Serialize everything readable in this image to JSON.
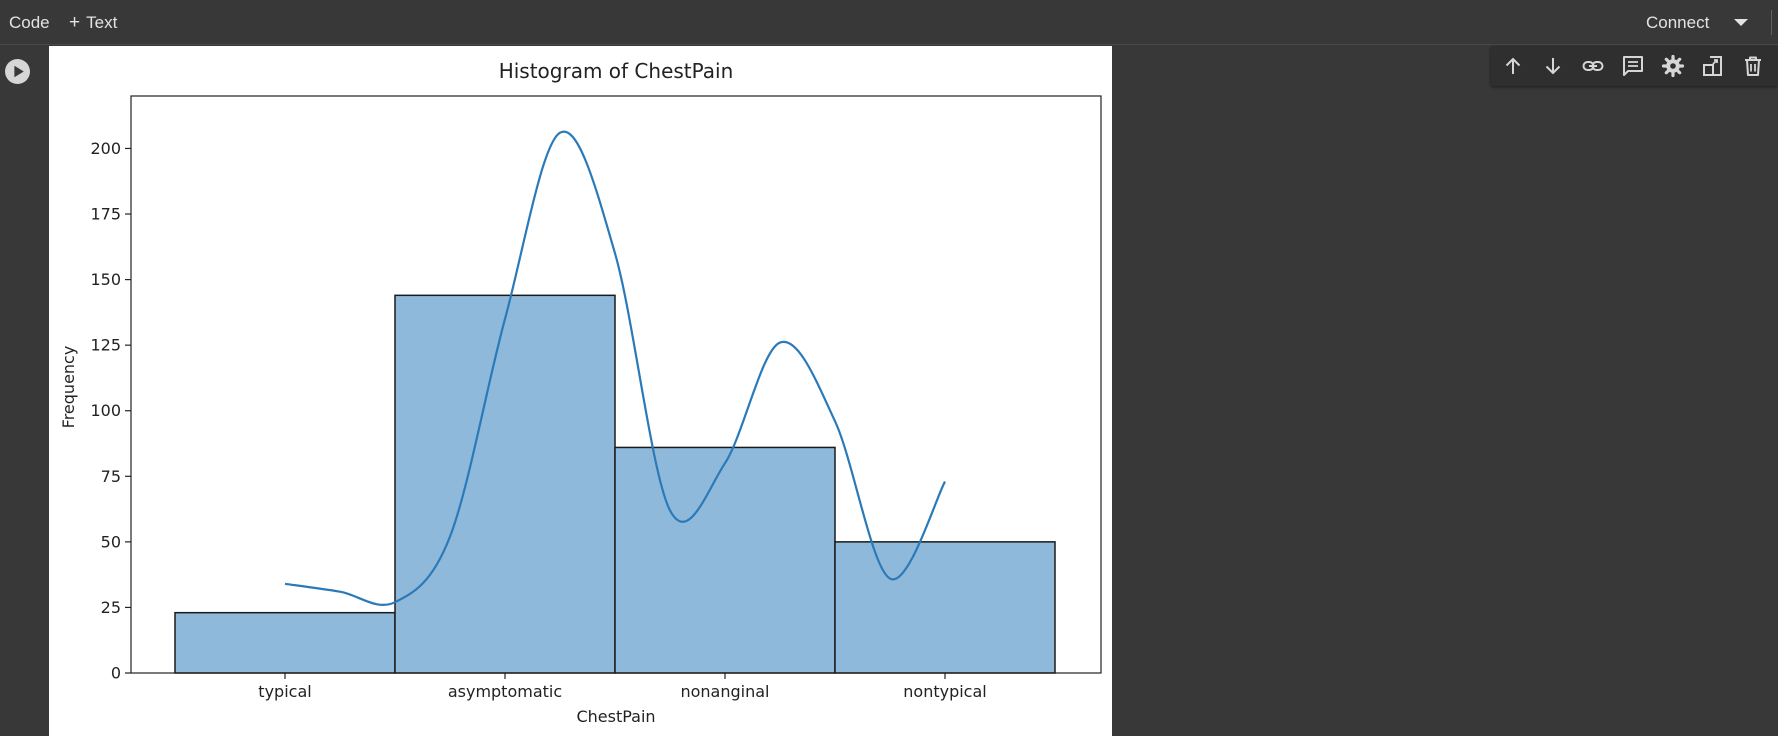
{
  "toolbar": {
    "code_label": "Code",
    "text_label": "Text",
    "text_plus": "+",
    "connect_label": "Connect"
  },
  "cell_toolbar": {
    "icons": [
      "arrow-up-icon",
      "arrow-down-icon",
      "link-icon",
      "comment-icon",
      "gear-icon",
      "mirror-cell-icon",
      "trash-icon"
    ]
  },
  "chart_data": {
    "type": "bar",
    "title": "Histogram of ChestPain",
    "xlabel": "ChestPain",
    "ylabel": "Frequency",
    "categories": [
      "typical",
      "asymptomatic",
      "nonanginal",
      "nontypical"
    ],
    "values": [
      23,
      144,
      86,
      50
    ],
    "ylim": [
      0,
      220
    ],
    "yticks": [
      0,
      25,
      50,
      75,
      100,
      125,
      150,
      175,
      200
    ],
    "kde": {
      "x": [
        0.0,
        0.25,
        0.5,
        0.75,
        1.0,
        1.25,
        1.5,
        1.75,
        2.0,
        2.25,
        2.5,
        2.75,
        3.0
      ],
      "y": [
        34,
        31,
        27,
        52,
        135,
        206,
        160,
        62,
        80,
        126,
        96,
        36,
        73
      ]
    },
    "bar_color": "#8fb9da",
    "line_color": "#2a7ab9",
    "grid": false,
    "legend": false
  }
}
